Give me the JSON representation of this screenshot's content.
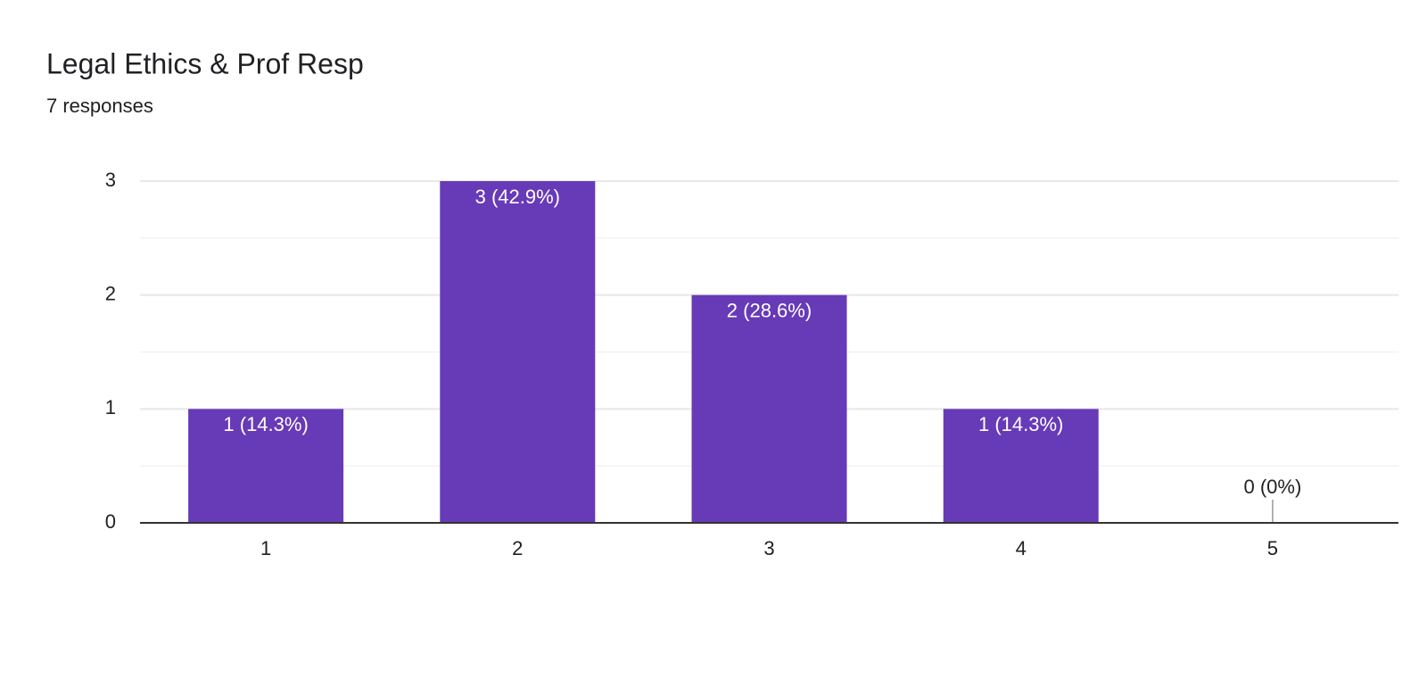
{
  "chart_data": {
    "type": "bar",
    "title": "Legal Ethics & Prof Resp",
    "subtitle": "7 responses",
    "categories": [
      "1",
      "2",
      "3",
      "4",
      "5"
    ],
    "values": [
      1,
      3,
      2,
      1,
      0
    ],
    "value_labels": [
      "1 (14.3%)",
      "3 (42.9%)",
      "2 (28.6%)",
      "1 (14.3%)",
      "0 (0%)"
    ],
    "color": "#673ab7",
    "ylim": [
      0,
      3
    ],
    "yticks": [
      0,
      1,
      2,
      3
    ],
    "minor_yticks": [
      0.5,
      1.5,
      2.5
    ],
    "grid": true
  }
}
